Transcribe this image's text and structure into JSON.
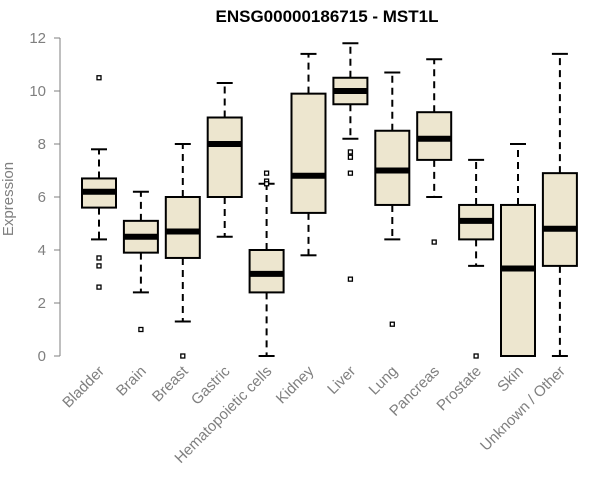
{
  "chart_data": {
    "type": "boxplot",
    "title": "ENSG00000186715 - MST1L",
    "xlabel": "",
    "ylabel": "Expression",
    "ylim": [
      0,
      12
    ],
    "yticks": [
      0,
      2,
      4,
      6,
      8,
      10,
      12
    ],
    "grid": false,
    "box_fill": "#ede6cf",
    "categories": [
      "Bladder",
      "Brain",
      "Breast",
      "Gastric",
      "Hematopoietic cells",
      "Kidney",
      "Liver",
      "Lung",
      "Pancreas",
      "Prostate",
      "Skin",
      "Unknown / Other"
    ],
    "boxes": [
      {
        "whisker_low": 4.4,
        "q1": 5.6,
        "median": 6.2,
        "q3": 6.7,
        "whisker_high": 7.8,
        "outliers": [
          10.5,
          3.7,
          3.4,
          2.6
        ]
      },
      {
        "whisker_low": 2.4,
        "q1": 3.9,
        "median": 4.5,
        "q3": 5.1,
        "whisker_high": 6.2,
        "outliers": [
          1.0
        ]
      },
      {
        "whisker_low": 1.3,
        "q1": 3.7,
        "median": 4.7,
        "q3": 6.0,
        "whisker_high": 8.0,
        "outliers": [
          0.0
        ]
      },
      {
        "whisker_low": 4.5,
        "q1": 6.0,
        "median": 8.0,
        "q3": 9.0,
        "whisker_high": 10.3,
        "outliers": []
      },
      {
        "whisker_low": 0.0,
        "q1": 2.4,
        "median": 3.1,
        "q3": 4.0,
        "whisker_high": 6.5,
        "outliers": [
          6.9,
          6.6,
          6.5
        ]
      },
      {
        "whisker_low": 3.8,
        "q1": 5.4,
        "median": 6.8,
        "q3": 9.9,
        "whisker_high": 11.4,
        "outliers": []
      },
      {
        "whisker_low": 8.2,
        "q1": 9.5,
        "median": 10.0,
        "q3": 10.5,
        "whisker_high": 11.8,
        "outliers": [
          7.7,
          7.5,
          6.9,
          2.9
        ]
      },
      {
        "whisker_low": 4.4,
        "q1": 5.7,
        "median": 7.0,
        "q3": 8.5,
        "whisker_high": 10.7,
        "outliers": [
          1.2
        ]
      },
      {
        "whisker_low": 6.0,
        "q1": 7.4,
        "median": 8.2,
        "q3": 9.2,
        "whisker_high": 11.2,
        "outliers": [
          4.3
        ]
      },
      {
        "whisker_low": 3.4,
        "q1": 4.4,
        "median": 5.1,
        "q3": 5.7,
        "whisker_high": 7.4,
        "outliers": [
          0.0
        ]
      },
      {
        "whisker_low": 0.0,
        "q1": 0.0,
        "median": 3.3,
        "q3": 5.7,
        "whisker_high": 8.0,
        "outliers": []
      },
      {
        "whisker_low": 0.0,
        "q1": 3.4,
        "median": 4.8,
        "q3": 6.9,
        "whisker_high": 11.4,
        "outliers": []
      }
    ]
  }
}
